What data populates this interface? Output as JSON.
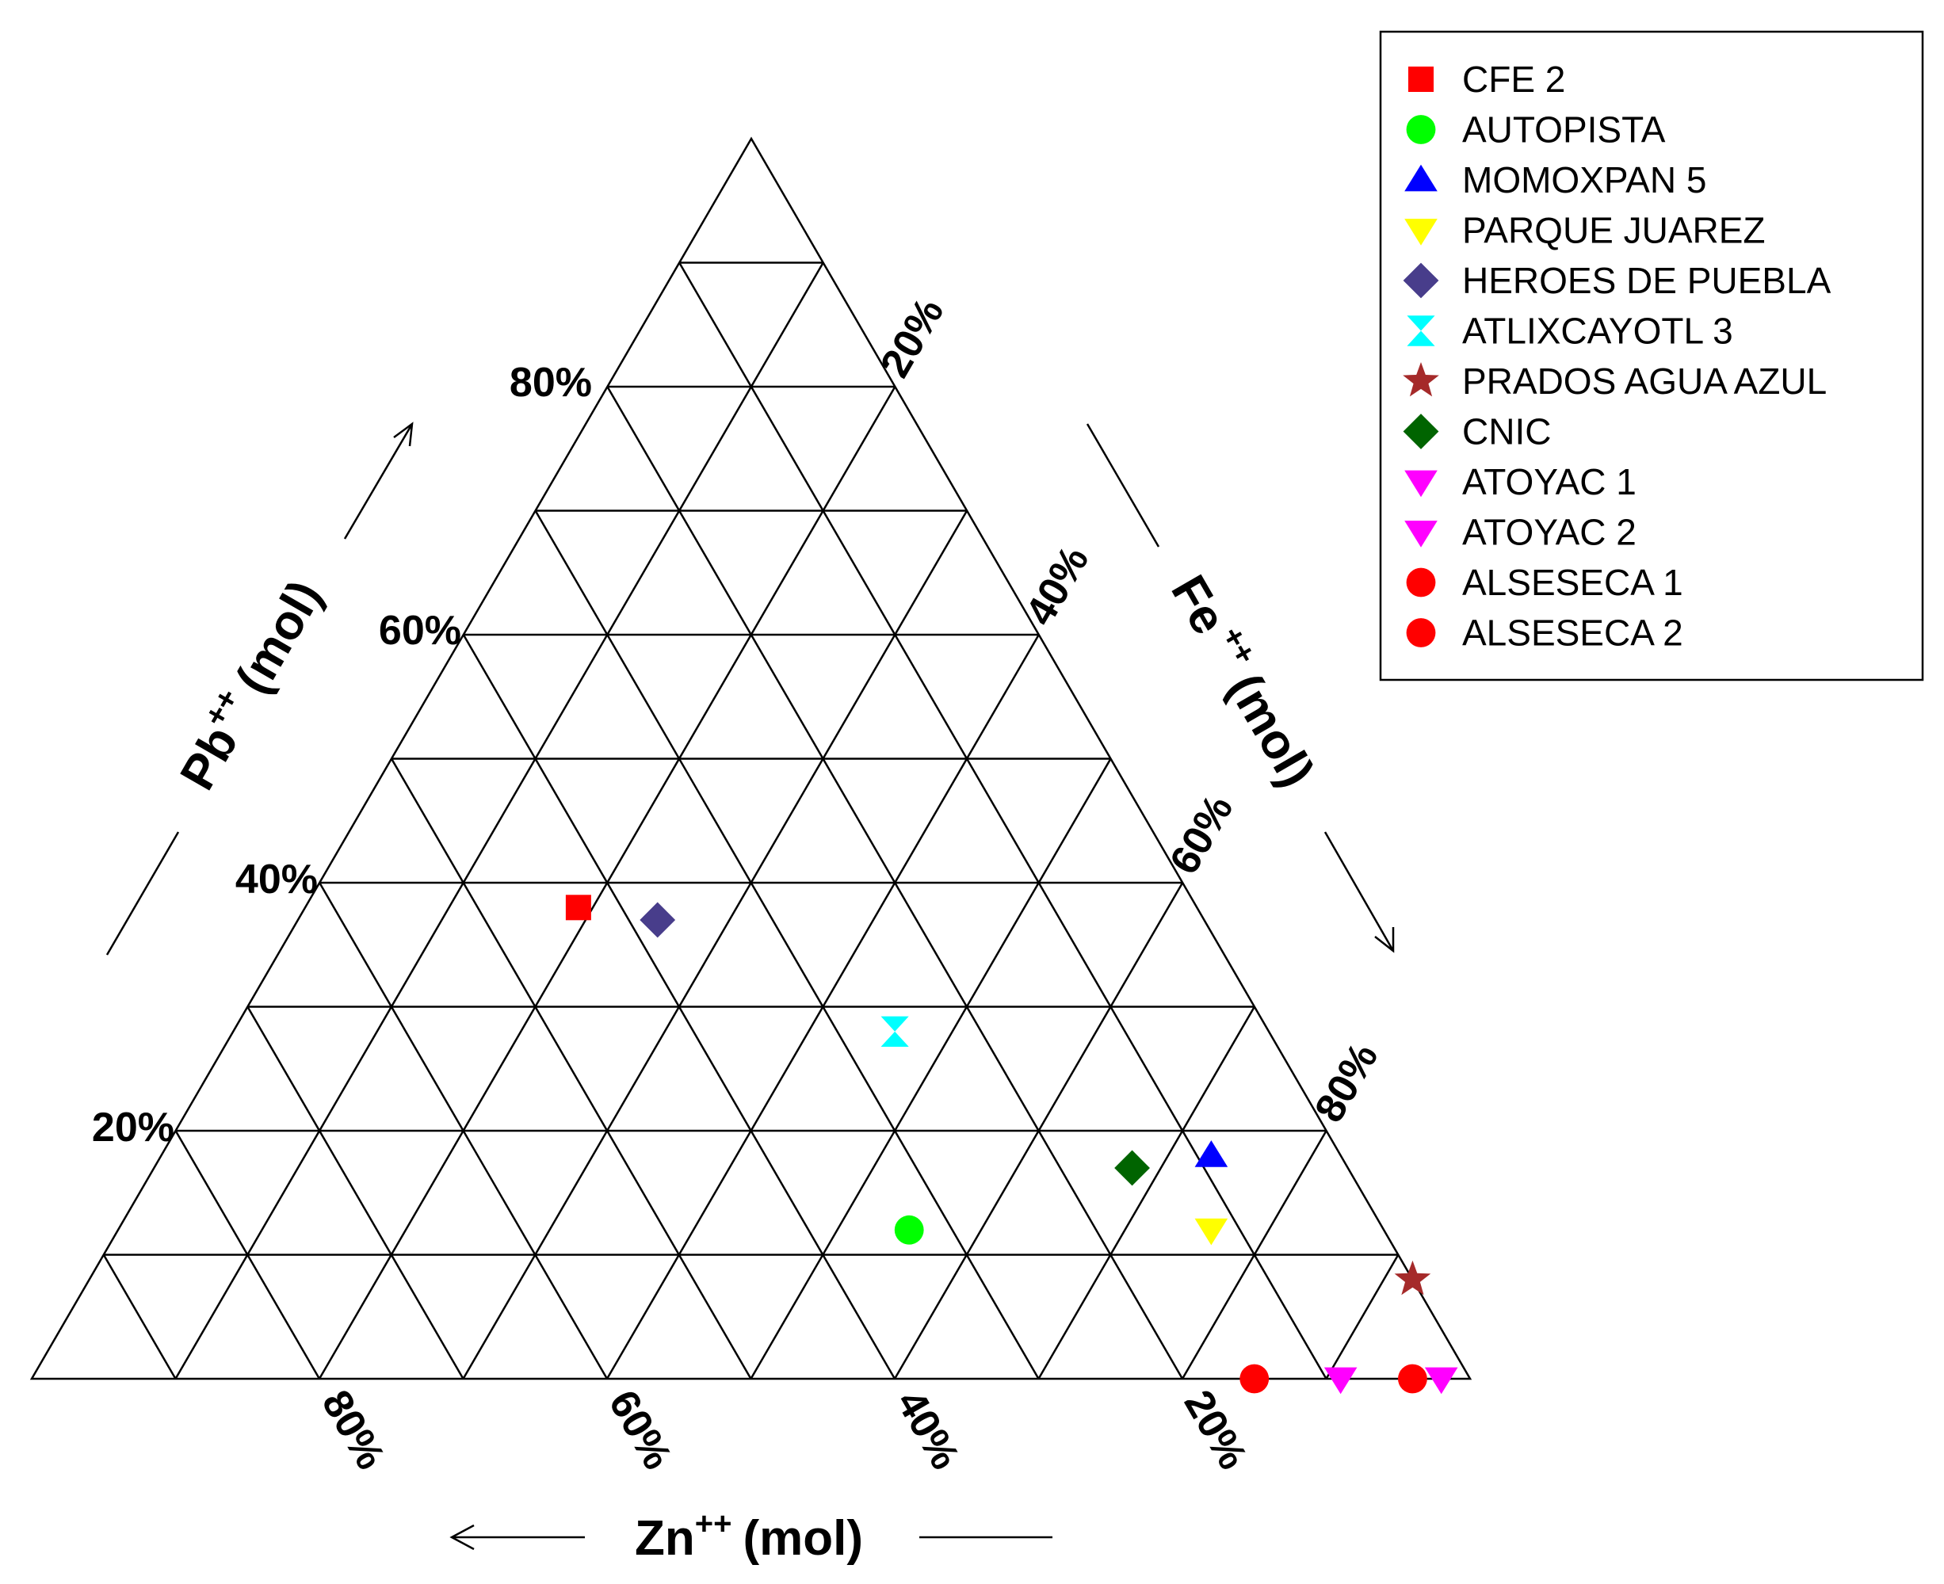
{
  "chart_data": {
    "type": "scatter",
    "subtype": "ternary",
    "axes": {
      "pb": {
        "element": "Pb",
        "charge": "++",
        "unit": "(mol)",
        "ticks": [
          "20%",
          "40%",
          "60%",
          "80%"
        ],
        "arrow": "up"
      },
      "fe": {
        "element": "Fe",
        "charge": "++",
        "unit": "(mol)",
        "ticks": [
          "20%",
          "40%",
          "60%",
          "80%"
        ],
        "arrow": "down"
      },
      "zn": {
        "element": "Zn",
        "charge": "++",
        "unit": "(mol)",
        "ticks": [
          "80%",
          "60%",
          "40%",
          "20%"
        ],
        "arrow": "left"
      }
    },
    "grid": true,
    "grid_step": 0.1,
    "legend_position": "top-right",
    "series": [
      {
        "name": "CFE 2",
        "marker": "square",
        "color": "#ff0000",
        "pb": 0.38,
        "zn": 0.43,
        "fe": 0.19
      },
      {
        "name": "AUTOPISTA",
        "marker": "circle",
        "color": "#00ff00",
        "pb": 0.12,
        "zn": 0.33,
        "fe": 0.55
      },
      {
        "name": "MOMOXPAN 5",
        "marker": "triangle-up",
        "color": "#0000ff",
        "pb": 0.18,
        "zn": 0.09,
        "fe": 0.73
      },
      {
        "name": "PARQUE JUAREZ",
        "marker": "triangle-down",
        "color": "#ffff00",
        "pb": 0.12,
        "zn": 0.12,
        "fe": 0.76
      },
      {
        "name": "HEROES DE PUEBLA",
        "marker": "diamond",
        "color": "#483d8b",
        "pb": 0.37,
        "zn": 0.38,
        "fe": 0.25
      },
      {
        "name": "ATLIXCAYOTL 3",
        "marker": "hourglass",
        "color": "#00ffff",
        "pb": 0.28,
        "zn": 0.26,
        "fe": 0.46
      },
      {
        "name": "PRADOS AGUA AZUL",
        "marker": "star",
        "color": "#a52a2a",
        "pb": 0.08,
        "zn": 0.0,
        "fe": 0.92
      },
      {
        "name": "CNIC",
        "marker": "diamond",
        "color": "#006400",
        "pb": 0.17,
        "zn": 0.15,
        "fe": 0.68
      },
      {
        "name": "ATOYAC 1",
        "marker": "triangle-down",
        "color": "#ff00ff",
        "pb": 0.0,
        "zn": 0.09,
        "fe": 0.91
      },
      {
        "name": "ATOYAC 2",
        "marker": "triangle-down",
        "color": "#ff00ff",
        "pb": 0.0,
        "zn": 0.02,
        "fe": 0.98
      },
      {
        "name": "ALSESECA 1",
        "marker": "circle",
        "color": "#ff0000",
        "pb": 0.0,
        "zn": 0.15,
        "fe": 0.85
      },
      {
        "name": "ALSESECA 2",
        "marker": "circle",
        "color": "#ff0000",
        "pb": 0.0,
        "zn": 0.04,
        "fe": 0.96
      }
    ]
  }
}
